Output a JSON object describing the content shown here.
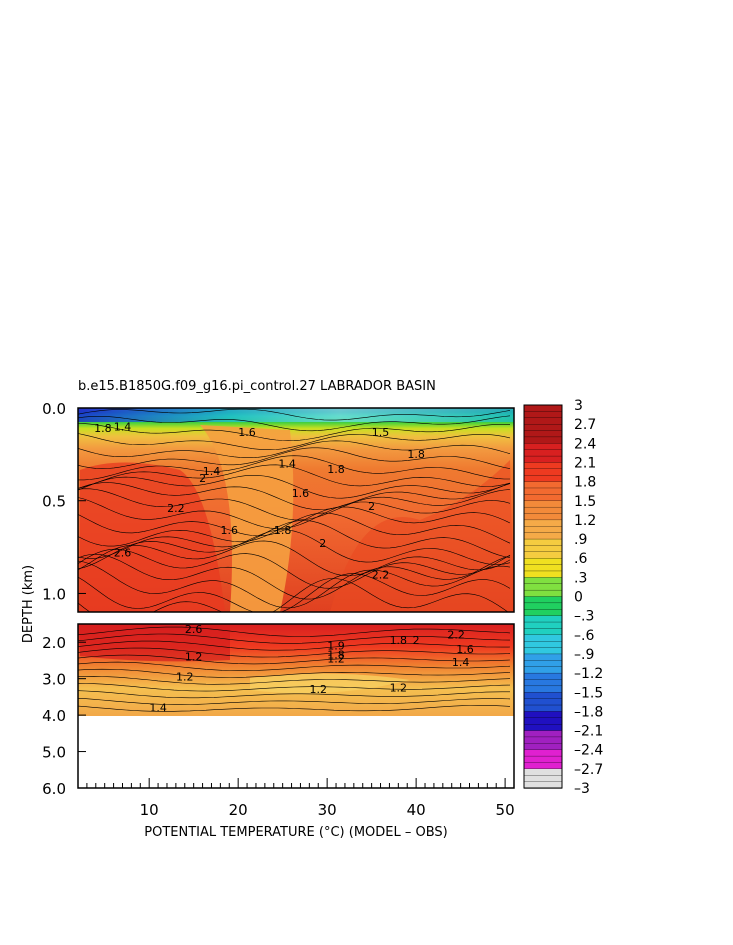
{
  "chart_data": {
    "type": "heatmap",
    "title": "b.e15.B1850G.f09_g16.pi_control.27 LABRADOR BASIN",
    "xlabel": "POTENTIAL TEMPERATURE (°C) (MODEL – OBS)",
    "ylabel": "DEPTH (km)",
    "xlim": [
      2,
      51
    ],
    "x_ticks": [
      "10",
      "20",
      "30",
      "40",
      "50"
    ],
    "upper_panel": {
      "ylim": [
        0.0,
        1.1
      ],
      "y_ticks": [
        "0.0",
        "0.5",
        "1.0"
      ]
    },
    "lower_panel": {
      "ylim": [
        1.5,
        6.0
      ],
      "y_ticks": [
        "2.0",
        "3.0",
        "4.0",
        "5.0",
        "6.0"
      ]
    },
    "colorbar": {
      "range": [
        -3,
        3
      ],
      "labels": [
        "3",
        "2.7",
        "2.4",
        "2.1",
        "1.8",
        "1.5",
        "1.2",
        ".9",
        ".6",
        ".3",
        "0",
        "–.3",
        "–.6",
        "–.9",
        "–1.2",
        "–1.5",
        "–1.8",
        "–2.1",
        "–2.4",
        "–2.7",
        "–3"
      ]
    },
    "contour_labels_upper": [
      {
        "text": "1.8",
        "x": 4.8,
        "y": 0.13
      },
      {
        "text": "1.4",
        "x": 7.0,
        "y": 0.12
      },
      {
        "text": "1.4",
        "x": 17.0,
        "y": 0.36
      },
      {
        "text": "2",
        "x": 16.0,
        "y": 0.4
      },
      {
        "text": "2.2",
        "x": 13.0,
        "y": 0.56
      },
      {
        "text": "1.6",
        "x": 19.0,
        "y": 0.68
      },
      {
        "text": "1.8",
        "x": 25.0,
        "y": 0.68
      },
      {
        "text": "1.6",
        "x": 27.0,
        "y": 0.48
      },
      {
        "text": "1.4",
        "x": 25.5,
        "y": 0.32
      },
      {
        "text": "1.8",
        "x": 31.0,
        "y": 0.35
      },
      {
        "text": "2",
        "x": 29.5,
        "y": 0.75
      },
      {
        "text": "2",
        "x": 35.0,
        "y": 0.55
      },
      {
        "text": "1.8",
        "x": 40.0,
        "y": 0.27
      },
      {
        "text": "2.6",
        "x": 7.0,
        "y": 0.8
      },
      {
        "text": "2.2",
        "x": 36.0,
        "y": 0.92
      },
      {
        "text": "1.6",
        "x": 21.0,
        "y": 0.15
      },
      {
        "text": "1.5",
        "x": 36.0,
        "y": 0.15
      }
    ],
    "contour_labels_lower": [
      {
        "text": "2.6",
        "x": 15.0,
        "y": 1.75
      },
      {
        "text": "1.2",
        "x": 15.0,
        "y": 2.5
      },
      {
        "text": "1.2",
        "x": 14.0,
        "y": 3.05
      },
      {
        "text": "1.9",
        "x": 31.0,
        "y": 2.2
      },
      {
        "text": "1.8",
        "x": 31.0,
        "y": 2.45
      },
      {
        "text": "1.2",
        "x": 31.0,
        "y": 2.55
      },
      {
        "text": "1.2",
        "x": 29.0,
        "y": 3.4
      },
      {
        "text": "1.2",
        "x": 38.0,
        "y": 3.35
      },
      {
        "text": "1.8",
        "x": 38.0,
        "y": 2.05
      },
      {
        "text": "2",
        "x": 40.0,
        "y": 2.05
      },
      {
        "text": "2.2",
        "x": 44.5,
        "y": 1.9
      },
      {
        "text": "1.6",
        "x": 45.5,
        "y": 2.3
      },
      {
        "text": "1.4",
        "x": 45.0,
        "y": 2.65
      },
      {
        "text": "1.4",
        "x": 11.0,
        "y": 3.9
      }
    ]
  }
}
